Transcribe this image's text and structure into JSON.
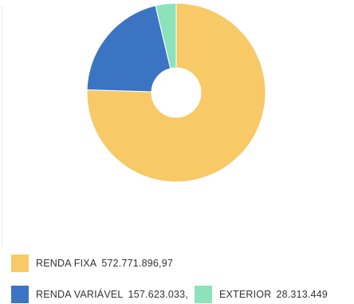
{
  "chart_data": {
    "type": "pie",
    "variant": "donut",
    "title": "",
    "categories": [
      "RENDA FIXA",
      "RENDA VARIÁVEL",
      "EXTERIOR"
    ],
    "values": [
      572771896.97,
      157623033,
      28313449
    ],
    "value_labels": [
      "572.771.896,97",
      "157.623.033,",
      "28.313.449"
    ],
    "colors": [
      "#f7c967",
      "#3c74c4",
      "#8ce3bb"
    ],
    "legend_position": "bottom",
    "start_angle_deg": 0,
    "direction": "clockwise"
  }
}
